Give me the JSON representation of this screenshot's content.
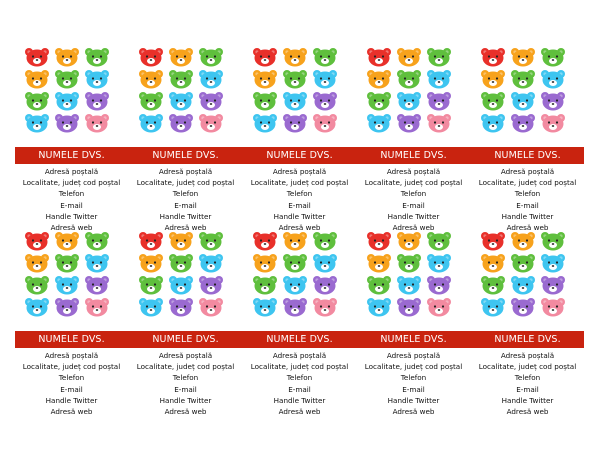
{
  "colors": {
    "band": "#c9230f",
    "bear_red": "#e8302a",
    "bear_orange": "#f7a21c",
    "bear_green": "#5fbf3d",
    "bear_blue": "#3ec5f0",
    "bear_purple": "#9a6ad0",
    "bear_pink": "#f28aa0"
  },
  "card": {
    "name": "NUMELE DVS.",
    "lines": [
      "Adresă poștală",
      "Localitate, județ cod poștal",
      "Telefon",
      "E-mail",
      "Handle Twitter",
      "Adresă web"
    ]
  },
  "bear_grid": [
    [
      "bear_red",
      "bear_orange",
      "bear_green"
    ],
    [
      "bear_orange",
      "bear_green",
      "bear_blue"
    ],
    [
      "bear_green",
      "bear_blue",
      "bear_purple"
    ],
    [
      "bear_blue",
      "bear_purple",
      "bear_pink"
    ]
  ],
  "cards_per_row": 5,
  "rows": 2
}
